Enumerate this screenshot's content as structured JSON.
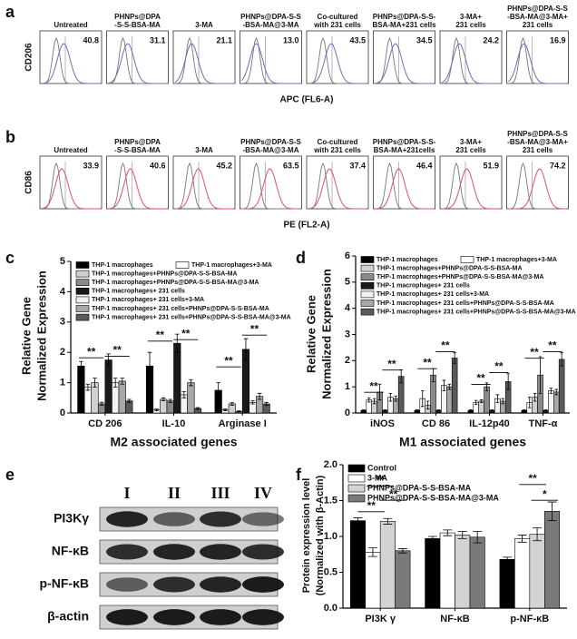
{
  "flow": [
    {
      "label": "a",
      "y_label": "CD206",
      "x_label": "APC (FL6-A)",
      "color": "#6d6dc0",
      "samples": [
        {
          "name": [
            "Untreated"
          ],
          "value": 40.8
        },
        {
          "name": [
            "PHNPs@DPA",
            "-S-S-BSA-MA"
          ],
          "value": 31.1
        },
        {
          "name": [
            "3-MA"
          ],
          "value": 21.1
        },
        {
          "name": [
            "PHNPs@DPA-S-S",
            "-BSA-MA@3-MA"
          ],
          "value": {
            "value": 13,
            "label": "13.0"
          }
        },
        {
          "name": [
            "Co-cultured",
            "with 231 cells"
          ],
          "value": 43.5
        },
        {
          "name": [
            "PHNPs@DPA-S-S-",
            "BSA-MA+231 cells"
          ],
          "value": 34.5
        },
        {
          "name": [
            "3-MA+",
            "231 cells"
          ],
          "value": 24.2
        },
        {
          "name": [
            "PHNPs@DPA-S-S",
            "-BSA-MA@3-MA+",
            "231 cells"
          ],
          "value": 16.9
        }
      ]
    },
    {
      "label": "b",
      "y_label": "CD86",
      "x_label": "PE (FL2-A)",
      "color": "#e0506e",
      "samples": [
        {
          "name": [
            "Untreated"
          ],
          "value": 33.9
        },
        {
          "name": [
            "PHNPs@DPA",
            "-S-S-BSA-MA"
          ],
          "value": 40.6
        },
        {
          "name": [
            "3-MA"
          ],
          "value": 45.2
        },
        {
          "name": [
            "PHNPs@DPA-S-S",
            "-BSA-MA@3-MA"
          ],
          "value": 63.5
        },
        {
          "name": [
            "Co-cultured",
            "with 231 cells"
          ],
          "value": 37.4
        },
        {
          "name": [
            "PHNPs@DPA-S-S-",
            "BSA-MA+231cells"
          ],
          "value": 46.4
        },
        {
          "name": [
            "3-MA+",
            "231 cells"
          ],
          "value": 51.9
        },
        {
          "name": [
            "PHNPs@DPA-S-S",
            "-BSA-MA@3-MA+",
            "231 cells"
          ],
          "value": 74.2
        }
      ]
    }
  ],
  "blot": {
    "label": "e",
    "lanes": [
      "I",
      "II",
      "III",
      "IV"
    ],
    "rows": [
      "PI3Kγ",
      "NF-κB",
      "p-NF-κB",
      "β-actin"
    ]
  },
  "chart_data": [
    {
      "type": "bar",
      "label": "c",
      "y_label": [
        "Relative Gene",
        "Normalized Expression"
      ],
      "x_label": "M2 associated genes",
      "categories": [
        "CD 206",
        "IL-10",
        "Arginase I"
      ],
      "ylim": [
        0,
        5
      ],
      "yticks": [
        0,
        1,
        2,
        3,
        4,
        5
      ],
      "annotations": [
        "**",
        "**",
        "**",
        "**",
        "**",
        "**"
      ],
      "series": [
        {
          "name": "THP-1 macrophages",
          "color": "#000000",
          "values": [
            1.55,
            1.55,
            0.75
          ],
          "errors": [
            0.15,
            0.45,
            0.25
          ]
        },
        {
          "name": "THP-1 macrophages+3-MA",
          "color": "#ffffff",
          "values": [
            0.85,
            0.1,
            0.1
          ],
          "errors": [
            0.1,
            0.03,
            0.03
          ]
        },
        {
          "name": "THP-1 macrophages+PHNPs@DPA-S-S-BSA-MA",
          "color": "#d0d0d0",
          "values": [
            1.0,
            0.45,
            0.3
          ],
          "errors": [
            0.15,
            0.05,
            0.04
          ]
        },
        {
          "name": "THP-1 macrophages+PHNPs@DPA-S-S-BSA-MA@3-MA",
          "color": "#8a8a8a",
          "values": [
            0.3,
            0.4,
            0.05
          ],
          "errors": [
            0.05,
            0.05,
            0.02
          ]
        },
        {
          "name": "THP-1 macrophages+ 231 cells",
          "color": "#1a1a1a",
          "values": [
            1.75,
            2.3,
            2.1
          ],
          "errors": [
            0.2,
            0.3,
            0.35
          ]
        },
        {
          "name": "THP-1 macrophages+ 231 cells+3-MA",
          "color": "#f2f2f2",
          "values": [
            1.0,
            0.6,
            0.35
          ],
          "errors": [
            0.15,
            0.1,
            0.05
          ]
        },
        {
          "name": "THP-1 macrophages+ 231 cells+PHNPs@DPA-S-S-BSA-MA",
          "color": "#a8a8a8",
          "values": [
            1.05,
            1.0,
            0.55
          ],
          "errors": [
            0.1,
            0.1,
            0.1
          ]
        },
        {
          "name": "THP-1 macrophages+ 231 cells+PHNPs@DPA-S-S-BSA-MA@3-MA",
          "color": "#5a5a5a",
          "values": [
            0.4,
            0.15,
            0.3
          ],
          "errors": [
            0.05,
            0.03,
            0.05
          ]
        }
      ]
    },
    {
      "type": "bar",
      "label": "d",
      "y_label": [
        "Relative Gene",
        "Normalized Expression"
      ],
      "x_label": "M1 associated genes",
      "categories": [
        "iNOS",
        "CD 86",
        "IL-12p40",
        "TNF-α"
      ],
      "ylim": [
        0,
        6
      ],
      "yticks": [
        0,
        1,
        2,
        3,
        4,
        5,
        6
      ],
      "annotations": [
        "**",
        "**",
        "**",
        "**",
        "**",
        "**",
        "**",
        "**"
      ],
      "series": [
        {
          "name": "THP-1 macrophages",
          "color": "#000000",
          "values": [
            0.1,
            0.1,
            0.1,
            0.1
          ],
          "errors": [
            0.02,
            0.02,
            0.02,
            0.02
          ]
        },
        {
          "name": "THP-1 macrophages+3-MA",
          "color": "#ffffff",
          "values": [
            0.5,
            0.55,
            0.4,
            0.4
          ],
          "errors": [
            0.08,
            0.3,
            0.08,
            0.2
          ]
        },
        {
          "name": "THP-1 macrophages+PHNPs@DPA-S-S-BSA-MA",
          "color": "#d0d0d0",
          "values": [
            0.45,
            0.3,
            0.45,
            0.6
          ],
          "errors": [
            0.1,
            0.15,
            0.05,
            0.15
          ]
        },
        {
          "name": "THP-1 macrophages+PHNPs@DPA-S-S-BSA-MA@3-MA",
          "color": "#8a8a8a",
          "values": [
            0.8,
            1.45,
            1.0,
            1.45
          ],
          "errors": [
            0.3,
            0.25,
            0.15,
            0.7
          ]
        },
        {
          "name": "THP-1 macrophages+ 231 cells",
          "color": "#1a1a1a",
          "values": [
            0.1,
            0.1,
            0.1,
            0.1
          ],
          "errors": [
            0.02,
            0.02,
            0.02,
            0.02
          ]
        },
        {
          "name": "THP-1 macrophages+ 231 cells+3-MA",
          "color": "#f2f2f2",
          "values": [
            0.6,
            1.05,
            0.55,
            0.85
          ],
          "errors": [
            0.15,
            0.2,
            0.15,
            0.1
          ]
        },
        {
          "name": "THP-1 macrophages+ 231 cells+PHNPs@DPA-S-S-BSA-MA",
          "color": "#a8a8a8",
          "values": [
            0.55,
            1.0,
            0.45,
            0.8
          ],
          "errors": [
            0.1,
            0.1,
            0.1,
            0.1
          ]
        },
        {
          "name": "THP-1 macrophages+ 231 cells+PHNPs@DPA-S-S-BSA-MA@3-MA",
          "color": "#5a5a5a",
          "values": [
            1.4,
            2.1,
            1.2,
            2.05
          ],
          "errors": [
            0.25,
            0.2,
            0.3,
            0.25
          ]
        }
      ]
    },
    {
      "type": "bar",
      "label": "f",
      "y_label": [
        "Protein expression level",
        "(Normalized with β-Actin)"
      ],
      "categories": [
        "PI3K γ",
        "NF-κB",
        "p-NF-κB"
      ],
      "ylim": [
        0,
        2.0
      ],
      "yticks": [
        {
          "value": 0,
          "label": "0.0"
        },
        {
          "value": 0.5,
          "label": "0.5"
        },
        {
          "value": 1,
          "label": "1.0"
        },
        {
          "value": 1.5,
          "label": "1.5"
        },
        {
          "value": 2,
          "label": "2.0"
        }
      ],
      "annotations": [
        "**",
        "**",
        "**",
        "**",
        "*"
      ],
      "series": [
        {
          "name": "Control",
          "color": "#000000",
          "values": [
            1.22,
            0.97,
            0.68
          ],
          "errors": [
            0.04,
            0.03,
            0.03
          ]
        },
        {
          "name": "3-MA",
          "color": "#ffffff",
          "values": [
            0.78,
            1.05,
            0.97
          ],
          "errors": [
            0.06,
            0.04,
            0.05
          ]
        },
        {
          "name": "PHNPs@DPA-S-S-BSA-MA",
          "color": "#d3d3d3",
          "values": [
            1.21,
            1.02,
            1.03
          ],
          "errors": [
            0.04,
            0.05,
            0.09
          ]
        },
        {
          "name": "PHNPs@DPA-S-S-BSA-MA@3-MA",
          "color": "#7a7a7a",
          "values": [
            0.8,
            0.99,
            1.35
          ],
          "errors": [
            0.03,
            0.08,
            0.13
          ]
        }
      ]
    }
  ]
}
